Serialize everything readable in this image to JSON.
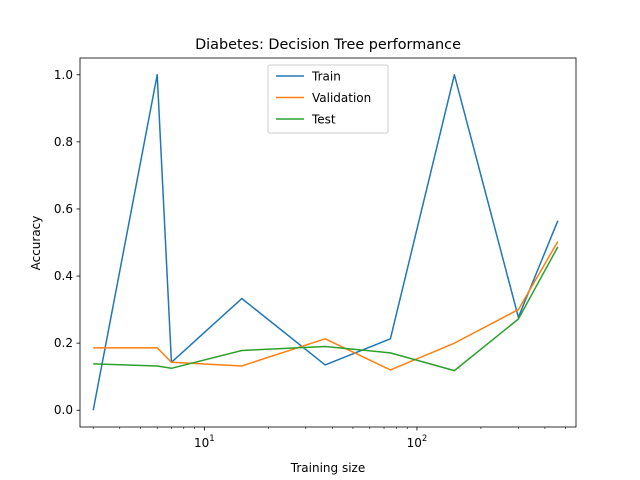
{
  "chart_data": {
    "type": "line",
    "title": "Diabetes: Decision Tree performance",
    "xlabel": "Training size",
    "ylabel": "Accuracy",
    "xscale": "log",
    "xlim": [
      2.6,
      560
    ],
    "ylim": [
      -0.05,
      1.05
    ],
    "x": [
      3,
      6,
      7,
      15,
      37,
      75,
      150,
      300,
      460
    ],
    "series": [
      {
        "name": "Train",
        "color": "#1f77b4",
        "values": [
          0.0,
          1.0,
          0.143,
          0.333,
          0.135,
          0.213,
          1.0,
          0.277,
          0.565
        ]
      },
      {
        "name": "Validation",
        "color": "#ff7f0e",
        "values": [
          0.186,
          0.186,
          0.143,
          0.132,
          0.213,
          0.12,
          0.2,
          0.3,
          0.503
        ]
      },
      {
        "name": "Test",
        "color": "#2ca02c",
        "values": [
          0.138,
          0.132,
          0.125,
          0.178,
          0.19,
          0.171,
          0.118,
          0.272,
          0.487
        ]
      }
    ],
    "yticks": [
      {
        "value": 0.0,
        "label": "0.0"
      },
      {
        "value": 0.2,
        "label": "0.2"
      },
      {
        "value": 0.4,
        "label": "0.4"
      },
      {
        "value": 0.6,
        "label": "0.6"
      },
      {
        "value": 0.8,
        "label": "0.8"
      },
      {
        "value": 1.0,
        "label": "1.0"
      }
    ],
    "xticks_major": [
      {
        "value": 10,
        "base": "10",
        "exp": "1"
      },
      {
        "value": 100,
        "base": "10",
        "exp": "2"
      }
    ],
    "xticks_minor": [
      3,
      4,
      5,
      6,
      7,
      8,
      9,
      20,
      30,
      40,
      50,
      60,
      70,
      80,
      90,
      200,
      300,
      400,
      500
    ],
    "legend": {
      "position": "top-center"
    },
    "grid": false
  }
}
